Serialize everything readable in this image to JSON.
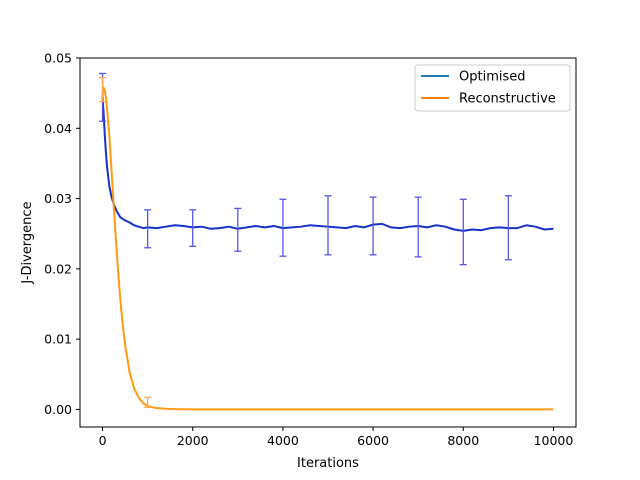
{
  "chart_data": {
    "type": "line",
    "xlabel": "Iterations",
    "ylabel": "J-Divergence",
    "xlim": [
      -500,
      10500
    ],
    "ylim": [
      -0.0025,
      0.05
    ],
    "xticks": [
      0,
      2000,
      4000,
      6000,
      8000,
      10000
    ],
    "yticks": [
      0.0,
      0.01,
      0.02,
      0.03,
      0.04,
      0.05
    ],
    "xtick_labels": [
      "0",
      "2000",
      "4000",
      "6000",
      "8000",
      "10000"
    ],
    "ytick_labels": [
      "0.00",
      "0.01",
      "0.02",
      "0.03",
      "0.04",
      "0.05"
    ],
    "grid": false,
    "legend_position": "top-right",
    "series": [
      {
        "name": "Optimised",
        "legend_color": "#1f77b4",
        "line_color": "#1533c8",
        "errorbar_color": "#5555ee",
        "x": [
          0,
          25,
          50,
          75,
          100,
          150,
          200,
          250,
          300,
          350,
          400,
          450,
          500,
          600,
          700,
          800,
          900,
          1000,
          1200,
          1400,
          1600,
          1800,
          2000,
          2200,
          2400,
          2600,
          2800,
          3000,
          3200,
          3400,
          3600,
          3800,
          4000,
          4200,
          4400,
          4600,
          4800,
          5000,
          5200,
          5400,
          5600,
          5800,
          6000,
          6200,
          6400,
          6600,
          6800,
          7000,
          7200,
          7400,
          7600,
          7800,
          8000,
          8200,
          8400,
          8600,
          8800,
          9000,
          9200,
          9400,
          9600,
          9800,
          10000
        ],
        "y": [
          0.0445,
          0.042,
          0.039,
          0.0365,
          0.0345,
          0.0318,
          0.0302,
          0.0292,
          0.0284,
          0.0278,
          0.0273,
          0.0271,
          0.0269,
          0.0266,
          0.0262,
          0.026,
          0.0258,
          0.0259,
          0.0258,
          0.026,
          0.0262,
          0.0261,
          0.0259,
          0.026,
          0.0257,
          0.0258,
          0.026,
          0.0257,
          0.0259,
          0.0261,
          0.0259,
          0.0261,
          0.0258,
          0.0259,
          0.026,
          0.0262,
          0.0261,
          0.026,
          0.0259,
          0.0258,
          0.0261,
          0.0259,
          0.0263,
          0.0264,
          0.0259,
          0.0258,
          0.026,
          0.0261,
          0.0259,
          0.0262,
          0.026,
          0.0256,
          0.0254,
          0.0256,
          0.0255,
          0.0258,
          0.0259,
          0.0258,
          0.0258,
          0.0262,
          0.026,
          0.0256,
          0.0257
        ],
        "errorbars": [
          {
            "x": 0,
            "low": 0.041,
            "high": 0.0478
          },
          {
            "x": 1000,
            "low": 0.023,
            "high": 0.0284
          },
          {
            "x": 2000,
            "low": 0.0232,
            "high": 0.0284
          },
          {
            "x": 3000,
            "low": 0.0225,
            "high": 0.0286
          },
          {
            "x": 4000,
            "low": 0.0218,
            "high": 0.0299
          },
          {
            "x": 5000,
            "low": 0.022,
            "high": 0.0304
          },
          {
            "x": 6000,
            "low": 0.022,
            "high": 0.0302
          },
          {
            "x": 7000,
            "low": 0.0217,
            "high": 0.0302
          },
          {
            "x": 8000,
            "low": 0.0206,
            "high": 0.0299
          },
          {
            "x": 9000,
            "low": 0.0213,
            "high": 0.0304
          }
        ]
      },
      {
        "name": "Reconstructive",
        "legend_color": "#ff7f0e",
        "line_color": "#ff9a12",
        "errorbar_color": "#ffaa55",
        "x": [
          0,
          20,
          40,
          60,
          80,
          100,
          150,
          200,
          250,
          300,
          350,
          400,
          450,
          500,
          600,
          700,
          800,
          900,
          1000,
          1100,
          1200,
          1400,
          1600,
          1800,
          2000,
          3000,
          4000,
          5000,
          6000,
          7000,
          8000,
          9000,
          10000
        ],
        "y": [
          0.0445,
          0.0458,
          0.0456,
          0.045,
          0.0441,
          0.0428,
          0.039,
          0.034,
          0.0288,
          0.0238,
          0.0192,
          0.0152,
          0.0119,
          0.0092,
          0.0053,
          0.003,
          0.0017,
          0.0009,
          0.0005,
          0.0003,
          0.0002,
          0.0001,
          4e-05,
          2e-05,
          1e-05,
          0.0,
          0.0,
          0.0,
          0.0,
          0.0,
          0.0,
          0.0,
          0.0
        ],
        "errorbars": [
          {
            "x": 0,
            "low": 0.0438,
            "high": 0.0472
          },
          {
            "x": 1000,
            "low": 0.0003,
            "high": 0.0017
          }
        ]
      }
    ]
  }
}
